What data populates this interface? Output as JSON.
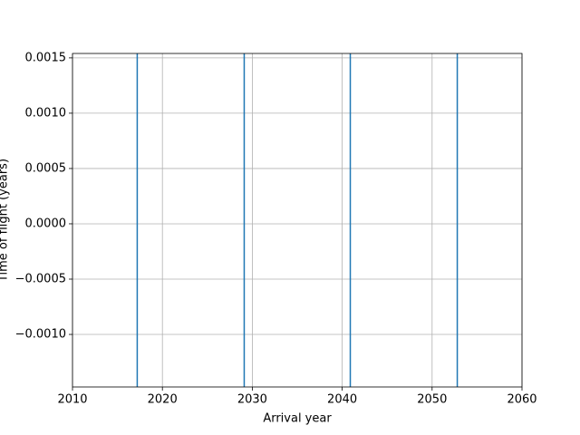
{
  "chart_data": {
    "type": "vlines",
    "xlabel": "Arrival year",
    "ylabel": "Time of flight (years)",
    "x": [
      2017.2,
      2029.1,
      2040.9,
      2052.8
    ],
    "color": "#1f77b4",
    "xlim": [
      2010,
      2060
    ],
    "xticks": [
      2010,
      2020,
      2030,
      2040,
      2050,
      2060
    ],
    "ylim": [
      -0.001475,
      0.00154
    ],
    "yticks": [
      {
        "value": -0.001,
        "label": "−0.0010"
      },
      {
        "value": -0.0005,
        "label": "−0.0005"
      },
      {
        "value": 0,
        "label": "0.0000"
      },
      {
        "value": 0.0005,
        "label": "0.0005"
      },
      {
        "value": 0.001,
        "label": "0.0010"
      },
      {
        "value": 0.0015,
        "label": "0.0015"
      }
    ],
    "grid": true
  }
}
